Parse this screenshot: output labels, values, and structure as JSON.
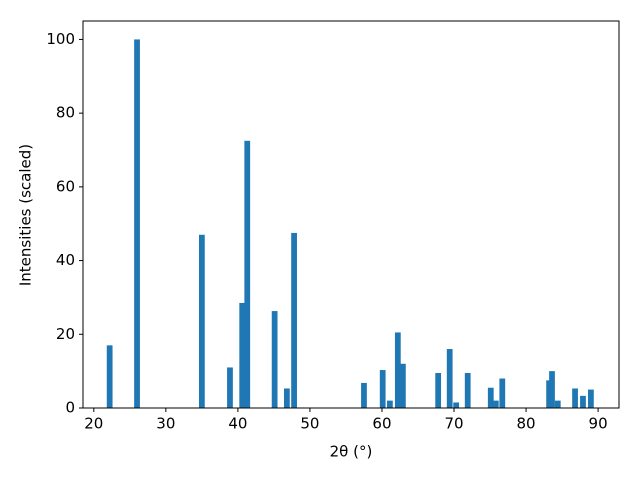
{
  "chart_data": {
    "type": "bar",
    "xlabel": "2θ (°)",
    "ylabel": "Intensities (scaled)",
    "x": [
      22.2,
      26.0,
      35.0,
      38.9,
      40.6,
      41.3,
      45.1,
      46.8,
      47.8,
      57.5,
      60.1,
      61.1,
      62.2,
      62.9,
      67.8,
      69.4,
      70.3,
      71.9,
      75.1,
      75.8,
      76.7,
      83.2,
      83.6,
      84.4,
      86.8,
      87.9,
      89.0
    ],
    "values": [
      17,
      100,
      47,
      11,
      28.5,
      72.5,
      26.3,
      5.3,
      47.5,
      6.8,
      10.3,
      2,
      20.5,
      12,
      9.5,
      16,
      1.5,
      9.5,
      5.5,
      2,
      8,
      7.5,
      10,
      2,
      5.3,
      3.3,
      5
    ],
    "bar_width": 0.8,
    "color": "#1f77b4",
    "xlim": [
      18.5,
      92.9
    ],
    "ylim": [
      0,
      105
    ],
    "xticks": [
      20,
      30,
      40,
      50,
      60,
      70,
      80,
      90
    ],
    "yticks": [
      0,
      20,
      40,
      60,
      80,
      100
    ]
  }
}
